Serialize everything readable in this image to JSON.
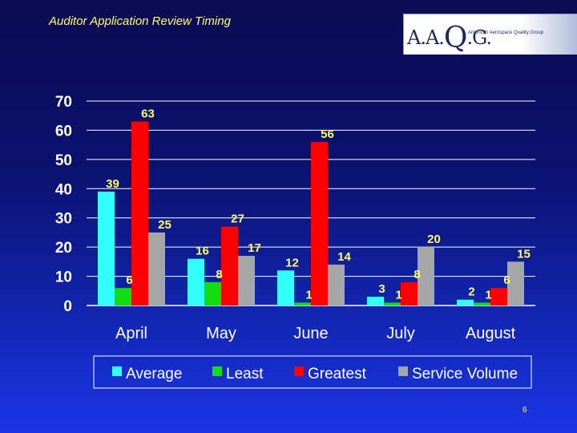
{
  "slide": {
    "title": "Auditor Application Review Timing",
    "page_number": "6"
  },
  "logo": {
    "mark_prefix": "A.A.",
    "mark_q": "Q",
    "mark_suffix": ".G.",
    "subtitle": "American Aerospace Quality Group"
  },
  "colors": {
    "text": "#ffff66",
    "axis_text": "#ffffff",
    "grid": "#ffffff"
  },
  "chart_data": {
    "type": "bar",
    "categories": [
      "April",
      "May",
      "June",
      "July",
      "August"
    ],
    "series": [
      {
        "name": "Average",
        "color": "#33ffff",
        "values": [
          39,
          16,
          12,
          3,
          2
        ]
      },
      {
        "name": "Least",
        "color": "#11dd11",
        "values": [
          6,
          8,
          1,
          1,
          1
        ]
      },
      {
        "name": "Greatest",
        "color": "#ff0000",
        "values": [
          63,
          27,
          56,
          8,
          6
        ]
      },
      {
        "name": "Service Volume",
        "color": "#a6a6a6",
        "values": [
          25,
          17,
          14,
          20,
          15
        ]
      }
    ],
    "yticks": [
      0,
      10,
      20,
      30,
      40,
      50,
      60,
      70
    ],
    "ylim": [
      0,
      70
    ],
    "grid": true,
    "legend_position": "bottom"
  }
}
